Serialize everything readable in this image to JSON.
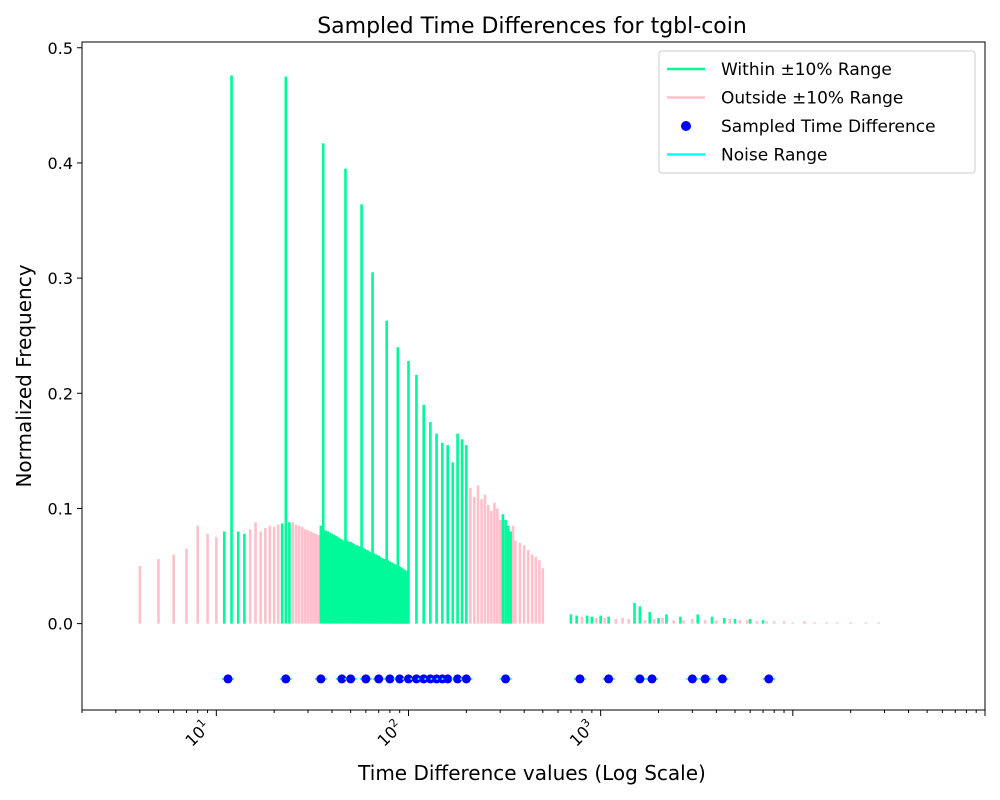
{
  "chart_data": {
    "type": "bar",
    "title": "Sampled Time Differences for tgbl-coin",
    "xlabel": "Time Difference values (Log Scale)",
    "ylabel": "Normalized Frequency",
    "x_scale": "log",
    "xlim": [
      2,
      100000
    ],
    "ylim": [
      -0.075,
      0.505
    ],
    "yticks": [
      0.0,
      0.1,
      0.2,
      0.3,
      0.4,
      0.5
    ],
    "ytick_labels": [
      "0.0",
      "0.1",
      "0.2",
      "0.3",
      "0.4",
      "0.5"
    ],
    "xticks": [
      10,
      100,
      1000
    ],
    "xtick_bases": [
      "10",
      "10",
      "10"
    ],
    "xtick_exponents": [
      "1",
      "2",
      "3"
    ],
    "grid": false,
    "legend_position": "top-right",
    "colors": {
      "within": "#00fa9a",
      "outside": "#ffc0cb",
      "sample": "#0000ff",
      "noise": "#00ffff"
    },
    "legend": [
      {
        "label": "Within ±10% Range",
        "kind": "line",
        "color": "#00fa9a"
      },
      {
        "label": "Outside ±10% Range",
        "kind": "line",
        "color": "#ffc0cb"
      },
      {
        "label": "Sampled Time Difference",
        "kind": "dot",
        "color": "#0000ff"
      },
      {
        "label": "Noise Range",
        "kind": "line",
        "color": "#00ffff"
      }
    ],
    "series": [
      {
        "name": "Outside ±10% Range",
        "x": [
          4,
          5,
          6,
          7,
          8,
          9,
          10,
          15,
          16,
          17,
          18,
          19,
          20,
          21,
          25,
          26,
          27,
          28,
          29,
          30,
          31,
          32,
          33,
          34,
          210,
          220,
          230,
          240,
          250,
          260,
          270,
          280,
          290,
          300,
          350,
          360,
          380,
          400,
          420,
          440,
          460,
          480,
          500,
          800,
          950,
          1050,
          1200,
          1300,
          1400,
          1700,
          1900,
          2100,
          2400,
          2700,
          3000,
          3500,
          4000,
          4700,
          5300,
          5800,
          6500,
          7300,
          8000,
          9000,
          10000,
          11500,
          13000,
          15000,
          17000,
          20000,
          24000,
          28000
        ],
        "values": [
          0.05,
          0.056,
          0.06,
          0.065,
          0.085,
          0.078,
          0.075,
          0.082,
          0.088,
          0.08,
          0.083,
          0.085,
          0.084,
          0.086,
          0.088,
          0.086,
          0.085,
          0.084,
          0.082,
          0.081,
          0.08,
          0.079,
          0.078,
          0.077,
          0.118,
          0.11,
          0.12,
          0.108,
          0.112,
          0.103,
          0.098,
          0.105,
          0.1,
          0.09,
          0.085,
          0.072,
          0.07,
          0.068,
          0.064,
          0.06,
          0.058,
          0.055,
          0.048,
          0.006,
          0.005,
          0.005,
          0.004,
          0.005,
          0.004,
          0.003,
          0.004,
          0.005,
          0.003,
          0.003,
          0.004,
          0.003,
          0.003,
          0.004,
          0.003,
          0.003,
          0.002,
          0.002,
          0.002,
          0.002,
          0.001,
          0.002,
          0.001,
          0.001,
          0.001,
          0.001,
          0.001,
          0.001
        ]
      },
      {
        "name": "Within ±10% Range",
        "x": [
          11,
          12,
          13,
          14,
          22,
          23,
          24,
          35,
          36,
          37,
          38,
          39,
          40,
          41,
          42,
          43,
          44,
          45,
          46,
          47,
          48,
          49,
          50,
          51,
          52,
          53,
          54,
          55,
          56,
          57,
          58,
          59,
          60,
          61,
          62,
          63,
          64,
          65,
          66,
          67,
          68,
          69,
          70,
          71,
          72,
          73,
          74,
          75,
          76,
          77,
          78,
          79,
          80,
          81,
          82,
          83,
          84,
          85,
          86,
          87,
          88,
          89,
          90,
          91,
          92,
          93,
          94,
          95,
          96,
          97,
          98,
          99,
          100,
          110,
          120,
          130,
          140,
          150,
          160,
          170,
          180,
          190,
          200,
          310,
          320,
          330,
          340,
          700,
          750,
          850,
          900,
          1000,
          1100,
          1500,
          1600,
          1800,
          2000,
          2200,
          2600,
          3200,
          3800,
          4400,
          5000,
          6000,
          7000
        ],
        "values": [
          0.08,
          0.476,
          0.08,
          0.078,
          0.087,
          0.475,
          0.088,
          0.085,
          0.417,
          0.081,
          0.08,
          0.079,
          0.078,
          0.077,
          0.076,
          0.075,
          0.074,
          0.073,
          0.072,
          0.395,
          0.072,
          0.071,
          0.071,
          0.07,
          0.069,
          0.068,
          0.068,
          0.067,
          0.067,
          0.364,
          0.066,
          0.065,
          0.064,
          0.064,
          0.063,
          0.062,
          0.062,
          0.305,
          0.061,
          0.06,
          0.06,
          0.059,
          0.059,
          0.058,
          0.057,
          0.057,
          0.056,
          0.056,
          0.055,
          0.263,
          0.055,
          0.054,
          0.054,
          0.053,
          0.053,
          0.052,
          0.052,
          0.051,
          0.051,
          0.05,
          0.24,
          0.05,
          0.049,
          0.049,
          0.048,
          0.048,
          0.047,
          0.047,
          0.046,
          0.046,
          0.045,
          0.045,
          0.228,
          0.216,
          0.19,
          0.175,
          0.165,
          0.157,
          0.155,
          0.14,
          0.165,
          0.16,
          0.155,
          0.095,
          0.09,
          0.085,
          0.08,
          0.008,
          0.007,
          0.007,
          0.006,
          0.007,
          0.006,
          0.018,
          0.015,
          0.01,
          0.005,
          0.008,
          0.006,
          0.008,
          0.006,
          0.005,
          0.004,
          0.004,
          0.003
        ]
      },
      {
        "name": "Sampled Time Difference",
        "kind": "points",
        "y": -0.048,
        "x": [
          11.5,
          23,
          35,
          45,
          50,
          60,
          70,
          80,
          90,
          100,
          110,
          120,
          130,
          140,
          150,
          160,
          180,
          200,
          320,
          780,
          1100,
          1600,
          1850,
          3000,
          3500,
          4300,
          7500
        ]
      }
    ]
  }
}
